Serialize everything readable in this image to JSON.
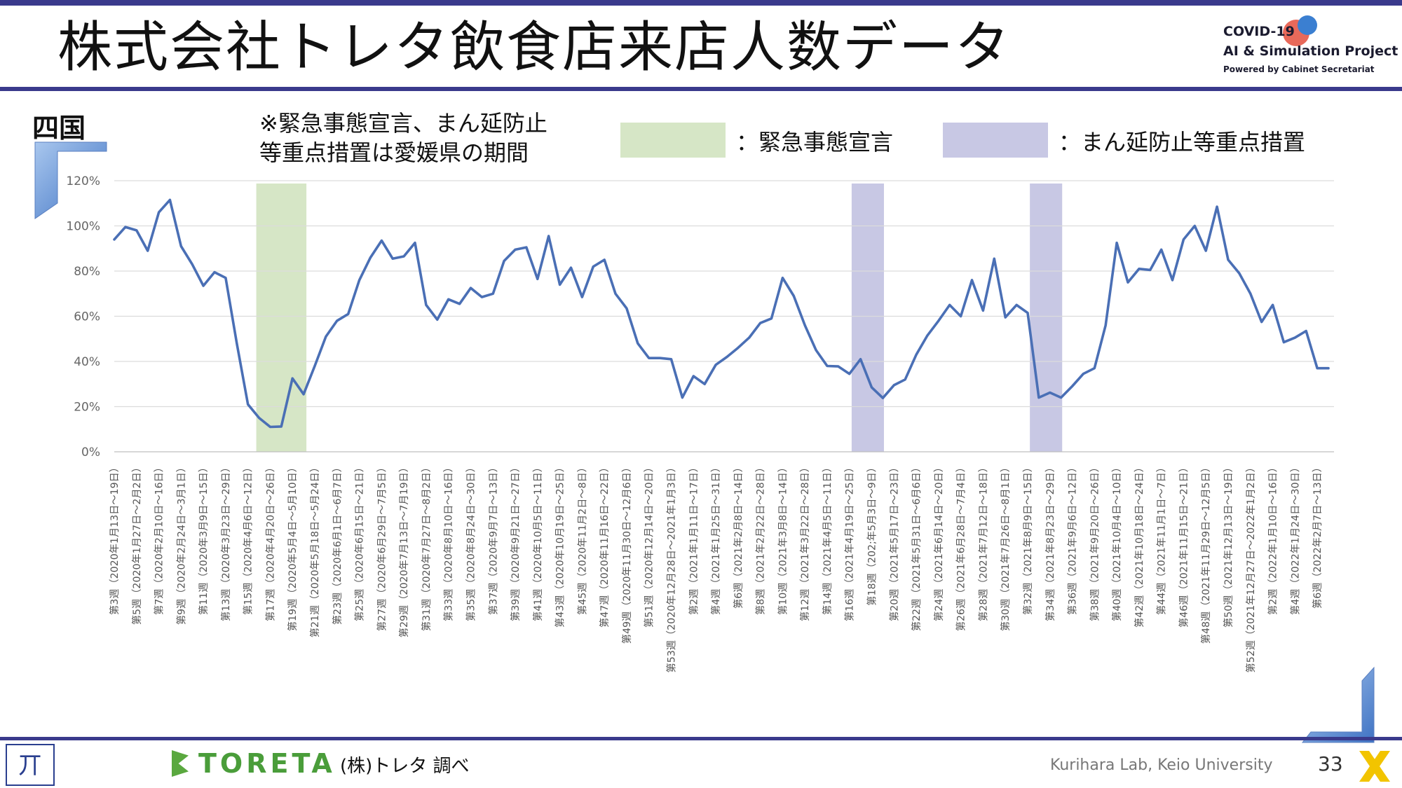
{
  "title": "株式会社トレタ飲食店来店人数データ",
  "logo": {
    "line1": "COVID-19",
    "line2": "AI & Simulation Project",
    "line3": "Powered by Cabinet Secretariat"
  },
  "region": "四国",
  "note_lines": [
    "※緊急事態宣言、まん延防止",
    "等重点措置は愛媛県の期間"
  ],
  "legend": {
    "emergency": "：緊急事態宣言",
    "semi_emergency": "：まん延防止等重点措置"
  },
  "footer": {
    "brand": "TORETA",
    "source": "(株)トレタ 調べ",
    "credit": "Kurihara Lab, Keio University",
    "page": "33"
  },
  "colors": {
    "line": "#4a6fb5",
    "emergency": "#d6e6c6",
    "semi_emergency": "#c8c8e4",
    "accent": "#3a3a8c"
  },
  "chart_data": {
    "type": "line",
    "title": "",
    "xlabel": "",
    "ylabel": "",
    "ylim": [
      0,
      1.2
    ],
    "yticks": [
      "0%",
      "20%",
      "40%",
      "60%",
      "80%",
      "100%",
      "120%"
    ],
    "grid": true,
    "x_labels": [
      "第3週（2020年1月13日～19日）",
      "第5週（2020年1月27日～2月2日）",
      "第7週（2020年2月10日～16日）",
      "第9週（2020年2月24日～3月1日）",
      "第11週（2020年3月9日～15日）",
      "第13週（2020年3月23日～29日）",
      "第15週（2020年4月6日～12日）",
      "第17週（2020年4月20日～26日）",
      "第19週（2020年5月4日～5月10日）",
      "第21週（2020年5月18日～5月24日）",
      "第23週（2020年6月1日～6月7日）",
      "第25週（2020年6月15日～21日）",
      "第27週（2020年6月29日～7月5日）",
      "第29週（2020年7月13日～7月19日）",
      "第31週（2020年7月27日～8月2日）",
      "第33週（2020年8月10日～16日）",
      "第35週（2020年8月24日～30日）",
      "第37週（2020年9月7日～13日）",
      "第39週（2020年9月21日～27日）",
      "第41週（2020年10月5日～11日）",
      "第43週（2020年10月19日～25日）",
      "第45週（2020年11月2日～8日）",
      "第47週（2020年11月16日～22日）",
      "第49週（2020年11月30日～12月6日）",
      "第51週（2020年12月14日～20日）",
      "第53週（2020年12月28日～2021年1月3日）",
      "第2週（2021年1月11日～17日）",
      "第4週（2021年1月25日～31日）",
      "第6週（2021年2月8日～14日）",
      "第8週（2021年2月22日～28日）",
      "第10週（2021年3月8日～14日）",
      "第12週（2021年3月22日～28日）",
      "第14週（2021年4月5日～11日）",
      "第16週（2021年4月19日～25日）",
      "第18週（202;年5月3日～9日）",
      "第20週（2021年5月17日～23日）",
      "第22週（2021年5月31日～6月6日）",
      "第24週（2021年6月14日～20日）",
      "第26週（2021年6月28日～7月4日）",
      "第28週（2021年7月12日～18日）",
      "第30週（2021年7月26日～8月1日）",
      "第32週（2021年8月9日～15日）",
      "第34週（2021年8月23日～29日）",
      "第36週（2021年9月6日～12日）",
      "第38週（2021年9月20日～26日）",
      "第40週（2021年10月4日～10日）",
      "第42週（2021年10月18日～24日）",
      "第44週（2021年11月1日～7日）",
      "第46週（2021年11月15日～21日）",
      "第48週（2021年11月29日～12月5日）",
      "第50週（2021年12月13日～19日）",
      "第52週（2021年12月27日～2022年1月2日）",
      "第2週（2022年1月10日～16日）",
      "第4週（2022年1月24日～30日）",
      "第6週（2022年2月7日～13日）"
    ],
    "series": [
      {
        "values": [
          0.94,
          0.995,
          0.98,
          0.89,
          1.06,
          1.115,
          0.91,
          0.83,
          0.735,
          0.795,
          0.77,
          0.48,
          0.21,
          0.15,
          0.11,
          0.112,
          0.325,
          0.255,
          0.38,
          0.51,
          0.58,
          0.61,
          0.76,
          0.86,
          0.935,
          0.855,
          0.865,
          0.925,
          0.65,
          0.585,
          0.675,
          0.655,
          0.725,
          0.685,
          0.7,
          0.845,
          0.895,
          0.905,
          0.765,
          0.955,
          0.74,
          0.815,
          0.685,
          0.82,
          0.85,
          0.7,
          0.635,
          0.48,
          0.415,
          0.415,
          0.41,
          0.24,
          0.335,
          0.3,
          0.385,
          0.42,
          0.46,
          0.505,
          0.57,
          0.59,
          0.77,
          0.69,
          0.56,
          0.45,
          0.38,
          0.378,
          0.345,
          0.41,
          0.285,
          0.238,
          0.295,
          0.32,
          0.43,
          0.515,
          0.58,
          0.65,
          0.6,
          0.76,
          0.625,
          0.855,
          0.595,
          0.65,
          0.615,
          0.24,
          0.262,
          0.24,
          0.29,
          0.345,
          0.37,
          0.56,
          0.925,
          0.75,
          0.81,
          0.805,
          0.895,
          0.76,
          0.94,
          1.0,
          0.89,
          1.085,
          0.85,
          0.79,
          0.7,
          0.575,
          0.65,
          0.485,
          0.505,
          0.535,
          0.37,
          0.37
        ]
      }
    ],
    "shaded_periods": [
      {
        "type": "emergency",
        "from": "第16週（2020年4月13日～19日）",
        "to": "第20週（2020年5月11日～17日）"
      },
      {
        "type": "semi_emergency",
        "from": "第17週（2021年4月26日～5月2日）",
        "to": "第20週（2021年5月17日～23日）"
      },
      {
        "type": "semi_emergency",
        "from": "第33週（2021年8月16日～22日）",
        "to": "第36週（2021年9月6日～12日）"
      }
    ]
  }
}
